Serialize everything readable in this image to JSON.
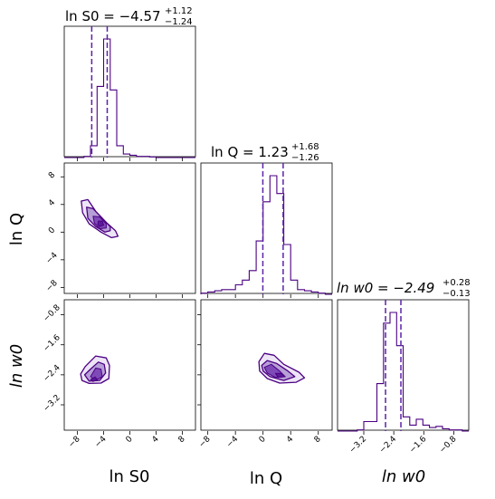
{
  "colors": {
    "line": "#4b0082",
    "median": "#5b22a8",
    "fill_outer": "#ede5f6",
    "fill_mid": "#b79fd7",
    "fill_inner": "#7f4ab8",
    "fill_core": "#5a1b9a",
    "frame": "#000000"
  },
  "titles": {
    "lnS0": {
      "base": "ln S0 = −4.57",
      "sup": "+1.12",
      "sub": "−1.24"
    },
    "lnQ": {
      "base": "ln Q = 1.23",
      "sup": "+1.68",
      "sub": "−1.26"
    },
    "lnw0": {
      "base": "ln w0 = −2.49",
      "sup": "+0.28",
      "sub": "−0.13"
    }
  },
  "axis_labels": {
    "x1": "ln S0",
    "x2": "ln Q",
    "x3": "ln w0",
    "y_row2": "ln Q",
    "y_row3": "ln w0"
  },
  "chart_data": {
    "type": "corner",
    "parameters": [
      "ln S0",
      "ln Q",
      "ln w0"
    ],
    "ranges": {
      "lnS0": [
        -10,
        10
      ],
      "lnQ": [
        -9,
        10
      ],
      "lnw0": [
        -3.9,
        -0.4
      ]
    },
    "ticks": {
      "lnS0": [
        -8,
        -4,
        0,
        4,
        8
      ],
      "lnQ": [
        -8,
        -4,
        0,
        4,
        8
      ],
      "lnw0": [
        -3.2,
        -2.4,
        -1.6,
        -0.8
      ]
    },
    "tick_labels": {
      "lnS0": [
        "−8",
        "−4",
        "0",
        "4",
        "8"
      ],
      "lnQ": [
        "−8",
        "−4",
        "0",
        "4",
        "8"
      ],
      "lnw0": [
        "−3.2",
        "−2.4",
        "−1.6",
        "−0.8"
      ]
    },
    "histograms": {
      "lnS0": {
        "bin_edges": [
          -10,
          -9,
          -8,
          -7,
          -6,
          -5,
          -4,
          -3,
          -2,
          -1,
          0,
          1,
          2,
          3,
          4,
          5,
          6,
          7,
          8,
          9,
          10
        ],
        "counts": [
          0,
          0,
          0,
          0.01,
          0.1,
          0.6,
          1.0,
          0.57,
          0.1,
          0.03,
          0.02,
          0.01,
          0.01,
          0.005,
          0,
          0,
          0,
          0,
          0,
          0
        ]
      },
      "lnQ": {
        "bin_edges": [
          -9,
          -8,
          -7,
          -6,
          -5,
          -4,
          -3,
          -2,
          -1,
          0,
          1,
          2,
          3,
          4,
          5,
          6,
          7,
          8,
          9,
          10
        ],
        "counts": [
          0.01,
          0.02,
          0.03,
          0.04,
          0.04,
          0.08,
          0.12,
          0.2,
          0.45,
          0.78,
          1.0,
          0.85,
          0.42,
          0.12,
          0.04,
          0.03,
          0.02,
          0.01,
          0
        ]
      },
      "lnw0": {
        "bin_edges": [
          -3.9,
          -3.725,
          -3.55,
          -3.375,
          -3.2,
          -3.025,
          -2.85,
          -2.675,
          -2.5,
          -2.325,
          -2.15,
          -1.975,
          -1.8,
          -1.625,
          -1.45,
          -1.275,
          -1.1,
          -0.925,
          -0.75,
          -0.575,
          -0.4
        ],
        "counts": [
          0,
          0,
          0,
          0.01,
          0.08,
          0.08,
          0.4,
          0.91,
          1.0,
          0.72,
          0.12,
          0.05,
          0.1,
          0.05,
          0.03,
          0.04,
          0.02,
          0.01,
          0.01,
          0
        ]
      }
    },
    "quantiles": {
      "lnS0": {
        "median": -4.57,
        "lo": -5.81,
        "hi": -3.45
      },
      "lnQ": {
        "median": 1.23,
        "lo": -0.03,
        "hi": 2.91
      },
      "lnw0": {
        "median": -2.49,
        "lo": -2.62,
        "hi": -2.21
      }
    },
    "contours_2d": [
      {
        "panel": "lnQ_vs_lnS0",
        "levels": [
          [
            [
              -7.4,
              4.5
            ],
            [
              -6.4,
              4.7
            ],
            [
              -5.2,
              3.0
            ],
            [
              -3.6,
              1.4
            ],
            [
              -2.2,
              0.2
            ],
            [
              -1.8,
              -0.6
            ],
            [
              -2.8,
              -0.8
            ],
            [
              -4.4,
              0.0
            ],
            [
              -6.2,
              1.2
            ],
            [
              -7.2,
              2.8
            ]
          ],
          [
            [
              -6.6,
              3.6
            ],
            [
              -5.6,
              3.4
            ],
            [
              -4.2,
              2.0
            ],
            [
              -3.0,
              0.8
            ],
            [
              -3.0,
              0.2
            ],
            [
              -3.8,
              0.0
            ],
            [
              -5.2,
              0.8
            ],
            [
              -6.4,
              2.0
            ]
          ],
          [
            [
              -5.6,
              2.3
            ],
            [
              -4.6,
              2.2
            ],
            [
              -3.6,
              1.2
            ],
            [
              -3.6,
              0.6
            ],
            [
              -4.6,
              0.5
            ],
            [
              -5.4,
              1.3
            ]
          ],
          [
            [
              -4.8,
              1.6
            ],
            [
              -4.2,
              1.6
            ],
            [
              -4.0,
              1.0
            ],
            [
              -4.6,
              0.8
            ],
            [
              -4.9,
              1.1
            ]
          ]
        ]
      },
      {
        "panel": "lnw0_vs_lnS0",
        "levels": [
          [
            [
              -7.5,
              -2.38
            ],
            [
              -6.8,
              -2.18
            ],
            [
              -5.2,
              -1.9
            ],
            [
              -3.6,
              -1.95
            ],
            [
              -3.1,
              -2.15
            ],
            [
              -3.2,
              -2.5
            ],
            [
              -4.4,
              -2.62
            ],
            [
              -6.2,
              -2.63
            ],
            [
              -7.3,
              -2.55
            ]
          ],
          [
            [
              -6.9,
              -2.4
            ],
            [
              -6.0,
              -2.25
            ],
            [
              -4.8,
              -2.06
            ],
            [
              -3.9,
              -2.12
            ],
            [
              -3.7,
              -2.35
            ],
            [
              -4.6,
              -2.55
            ],
            [
              -6.2,
              -2.57
            ]
          ],
          [
            [
              -6.0,
              -2.45
            ],
            [
              -5.2,
              -2.22
            ],
            [
              -4.4,
              -2.25
            ],
            [
              -4.2,
              -2.45
            ],
            [
              -5.2,
              -2.55
            ]
          ],
          [
            [
              -6.0,
              -2.53
            ],
            [
              -5.3,
              -2.46
            ],
            [
              -5.0,
              -2.52
            ],
            [
              -5.6,
              -2.58
            ]
          ]
        ]
      },
      {
        "panel": "lnw0_vs_lnQ",
        "levels": [
          [
            [
              -0.6,
              -2.05
            ],
            [
              0.2,
              -1.83
            ],
            [
              1.6,
              -1.88
            ],
            [
              3.0,
              -2.12
            ],
            [
              5.2,
              -2.33
            ],
            [
              6.0,
              -2.48
            ],
            [
              4.8,
              -2.6
            ],
            [
              2.4,
              -2.62
            ],
            [
              0.6,
              -2.5
            ],
            [
              -0.5,
              -2.3
            ]
          ],
          [
            [
              -0.2,
              -2.15
            ],
            [
              0.6,
              -2.02
            ],
            [
              2.0,
              -2.1
            ],
            [
              3.6,
              -2.3
            ],
            [
              4.6,
              -2.45
            ],
            [
              3.0,
              -2.55
            ],
            [
              1.0,
              -2.45
            ],
            [
              0.0,
              -2.3
            ]
          ],
          [
            [
              0.2,
              -2.2
            ],
            [
              1.2,
              -2.12
            ],
            [
              2.4,
              -2.3
            ],
            [
              3.2,
              -2.45
            ],
            [
              1.8,
              -2.47
            ],
            [
              0.6,
              -2.35
            ]
          ],
          [
            [
              1.8,
              -2.36
            ],
            [
              2.6,
              -2.36
            ],
            [
              3.2,
              -2.45
            ],
            [
              2.2,
              -2.47
            ]
          ]
        ]
      }
    ]
  }
}
